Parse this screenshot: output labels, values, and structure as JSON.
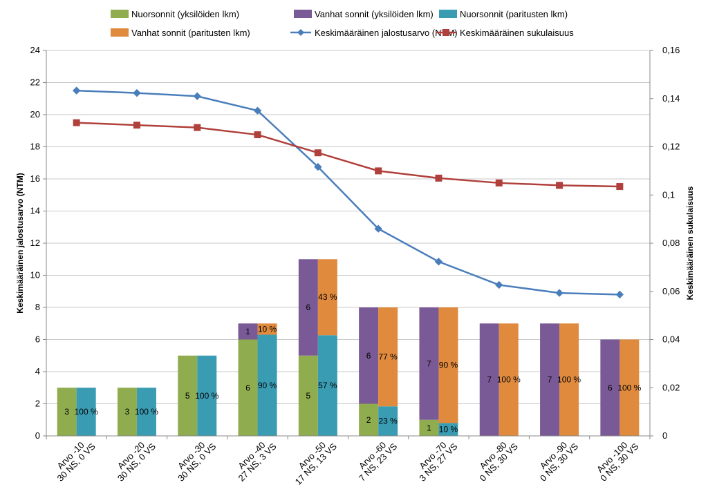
{
  "chart_data": {
    "type": "bar",
    "categories": [
      [
        "Arvo -10",
        "30 NS, 0 VS"
      ],
      [
        "Arvo -20",
        "30 NS, 0 VS"
      ],
      [
        "Arvo -30",
        "30 NS, 0 VS"
      ],
      [
        "Arvo -40",
        "27 NS, 3 VS"
      ],
      [
        "Arvo -50",
        "17 NS, 13 VS"
      ],
      [
        "Arvo -60",
        "7 NS, 23 VS"
      ],
      [
        "Arvo -70",
        "3 NS, 27 VS"
      ],
      [
        "Arvo -80",
        "0 NS, 30 VS"
      ],
      [
        "Arvo -90",
        "0 NS, 30 VS"
      ],
      [
        "Arvo -100",
        "0 NS, 30 VS"
      ]
    ],
    "series": [
      {
        "name": "Nuorsonnit (yksilöiden lkm)",
        "type": "stacked-bar",
        "stack": "individuals",
        "axis": "left",
        "color": "#8fad4f",
        "values": [
          3,
          3,
          5,
          6,
          5,
          2,
          1,
          0,
          0,
          0
        ],
        "labels": [
          "3",
          "3",
          "5",
          "6",
          "5",
          "2",
          "1",
          "",
          "",
          ""
        ]
      },
      {
        "name": "Vanhat sonnit (yksilöiden lkm)",
        "type": "stacked-bar",
        "stack": "individuals",
        "axis": "left",
        "color": "#7a5a96",
        "values": [
          0,
          0,
          0,
          1,
          6,
          6,
          7,
          7,
          7,
          6
        ],
        "labels": [
          "",
          "",
          "",
          "1",
          "6",
          "6",
          "7",
          "7",
          "7",
          "6"
        ]
      },
      {
        "name": "Nuorsonnit (paritusten lkm)",
        "type": "stacked-bar",
        "stack": "matings",
        "axis": "left",
        "color": "#3a9cb3",
        "values": [
          3,
          3,
          5,
          6.3,
          6.27,
          1.84,
          0.8,
          0,
          0,
          0
        ],
        "labels": [
          "100 %",
          "100 %",
          "100 %",
          "90 %",
          "57 %",
          "23 %",
          "10 %",
          "",
          "",
          ""
        ]
      },
      {
        "name": "Vanhat sonnit (paritusten lkm)",
        "type": "stacked-bar",
        "stack": "matings",
        "axis": "left",
        "color": "#e08a3e",
        "values": [
          0,
          0,
          0,
          0.7,
          4.73,
          6.16,
          7.2,
          7,
          7,
          6
        ],
        "labels": [
          "",
          "",
          "",
          "10 %",
          "43 %",
          "77 %",
          "90 %",
          "100 %",
          "100 %",
          "100 %"
        ]
      },
      {
        "name": "Keskimääräinen jalostusarvo (NTM)",
        "type": "line",
        "axis": "left",
        "color": "#4a7ebb",
        "marker": "diamond",
        "values": [
          21.5,
          21.35,
          21.15,
          20.25,
          16.75,
          12.9,
          10.85,
          9.4,
          8.9,
          8.8
        ]
      },
      {
        "name": "Keskimääräinen sukulaisuus",
        "type": "line",
        "axis": "right",
        "color": "#b0403c",
        "marker": "square",
        "values": [
          0.13,
          0.129,
          0.128,
          0.125,
          0.1175,
          0.11,
          0.107,
          0.105,
          0.104,
          0.1035
        ]
      }
    ],
    "y_left": {
      "label": "Keskimääräinen jalostusarvo (NTM)",
      "min": 0,
      "max": 24,
      "step": 2,
      "tick_labels": [
        "0",
        "2",
        "4",
        "6",
        "8",
        "10",
        "12",
        "14",
        "16",
        "18",
        "20",
        "22",
        "24"
      ]
    },
    "y_right": {
      "label": "Keskimääräinen sukulaisuus",
      "min": 0,
      "max": 0.16,
      "step": 0.02,
      "tick_labels": [
        "0",
        "0,02",
        "0,04",
        "0,06",
        "0,08",
        "0,1",
        "0,12",
        "0,14",
        "0,16"
      ]
    },
    "grid": "horizontal",
    "legend": {
      "position": "top"
    }
  }
}
